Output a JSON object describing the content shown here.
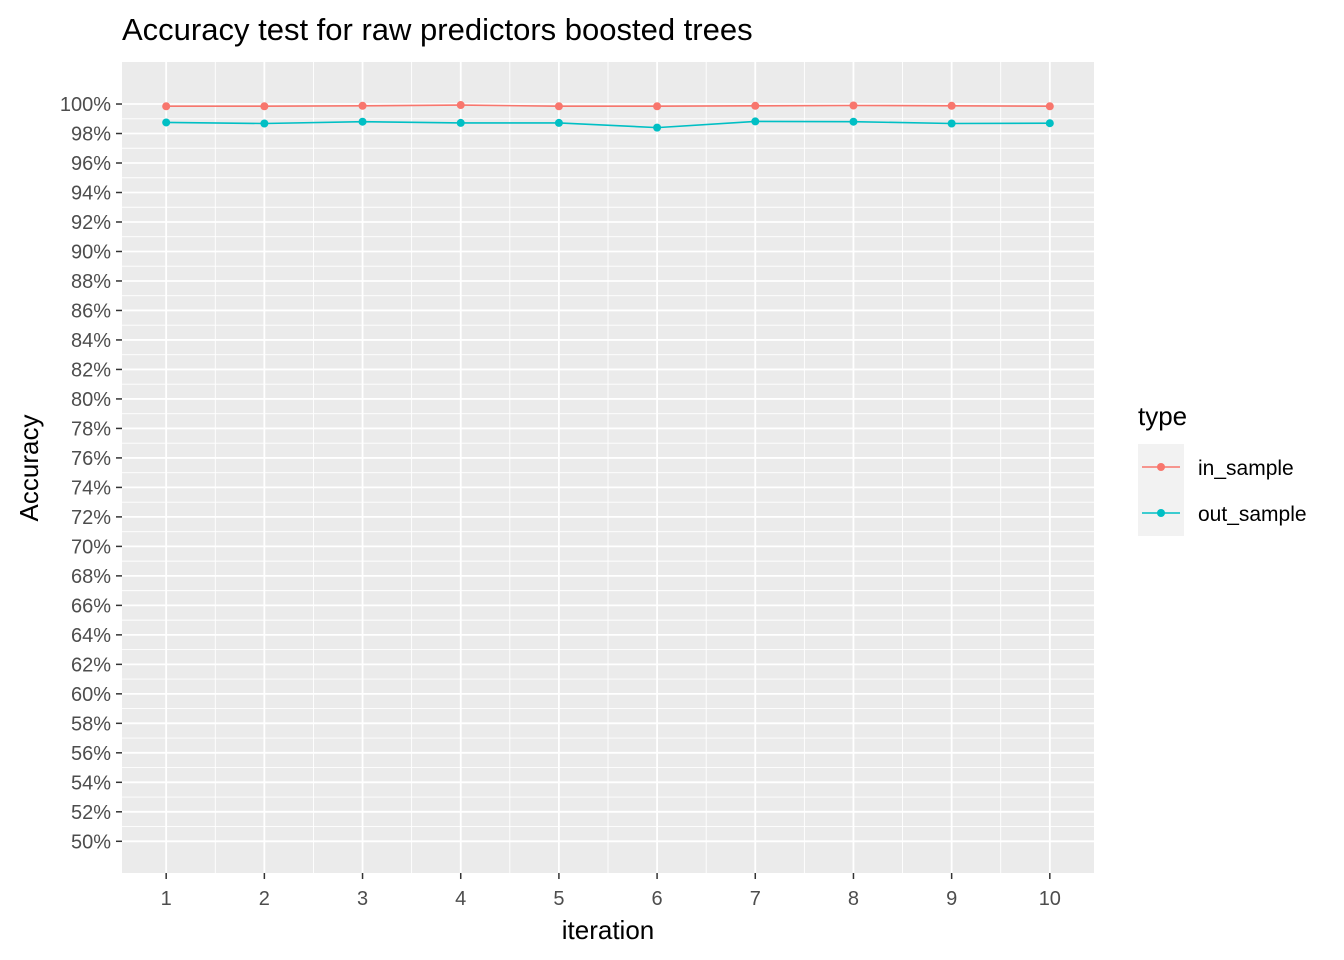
{
  "chart_data": {
    "type": "line",
    "title": "Accuracy test for raw predictors boosted trees",
    "xlabel": "iteration",
    "ylabel": "Accuracy",
    "x": [
      1,
      2,
      3,
      4,
      5,
      6,
      7,
      8,
      9,
      10
    ],
    "x_tick_labels": [
      "1",
      "2",
      "3",
      "4",
      "5",
      "6",
      "7",
      "8",
      "9",
      "10"
    ],
    "xlim": [
      0.55,
      10.45
    ],
    "ylim": [
      0.4785,
      1.0285
    ],
    "y_ticks": [
      0.5,
      0.52,
      0.54,
      0.56,
      0.58,
      0.6,
      0.62,
      0.64,
      0.66,
      0.68,
      0.7,
      0.72,
      0.74,
      0.76,
      0.78,
      0.8,
      0.82,
      0.84,
      0.86,
      0.88,
      0.9,
      0.92,
      0.94,
      0.96,
      0.98,
      1.0
    ],
    "y_tick_labels": [
      "50%",
      "52%",
      "54%",
      "56%",
      "58%",
      "60%",
      "62%",
      "64%",
      "66%",
      "68%",
      "70%",
      "72%",
      "74%",
      "76%",
      "78%",
      "80%",
      "82%",
      "84%",
      "86%",
      "88%",
      "90%",
      "92%",
      "94%",
      "96%",
      "98%",
      "100%"
    ],
    "grid": true,
    "legend": {
      "title": "type",
      "placement": "right"
    },
    "series": [
      {
        "name": "in_sample",
        "color": "#F8766D",
        "values": [
          0.9985,
          0.9985,
          0.9988,
          0.9993,
          0.9985,
          0.9985,
          0.9988,
          0.999,
          0.9988,
          0.9985
        ]
      },
      {
        "name": "out_sample",
        "color": "#00BFC4",
        "values": [
          0.9875,
          0.9868,
          0.988,
          0.9872,
          0.9872,
          0.984,
          0.9882,
          0.988,
          0.9868,
          0.987
        ]
      }
    ]
  }
}
